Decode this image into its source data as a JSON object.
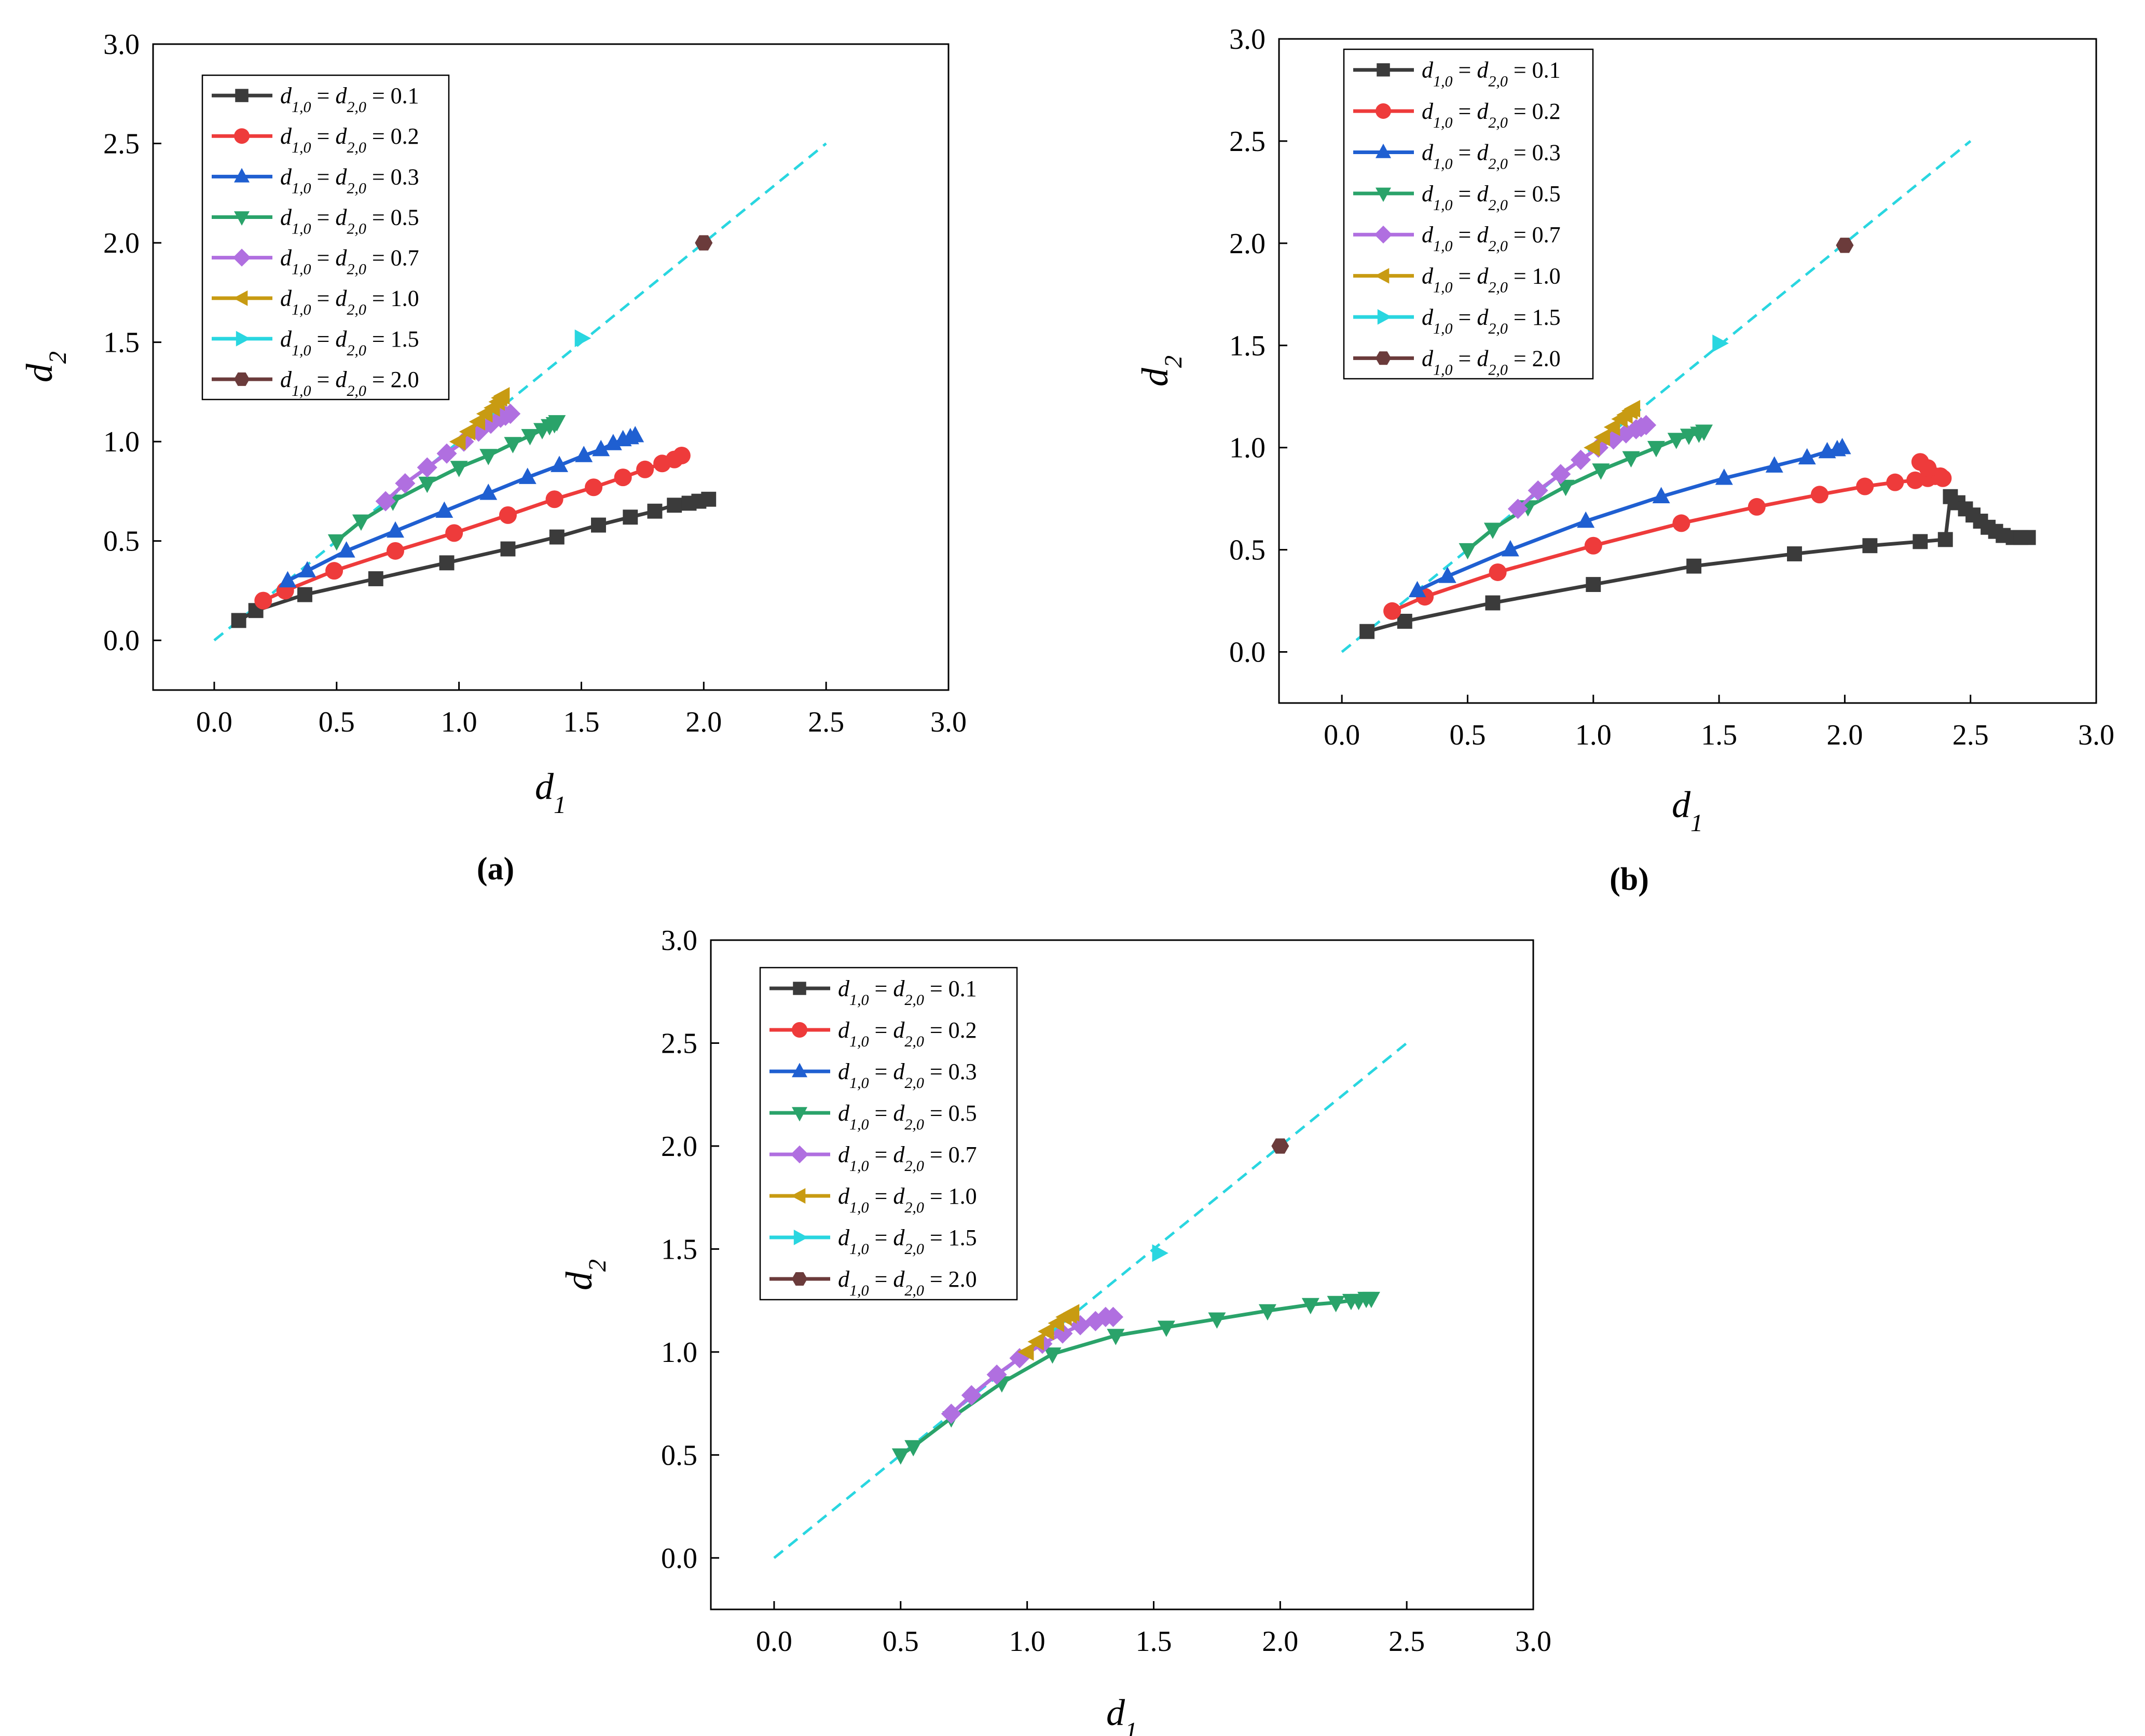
{
  "colors": {
    "d01": "#3b3b3b",
    "d02": "#ee3b3b",
    "d03": "#1f5fd1",
    "d05": "#2aa36a",
    "d07": "#b06fe0",
    "d10": "#c89b12",
    "d15": "#29d6e0",
    "d20": "#6b3b3b",
    "diag": "#29d6e0"
  },
  "series_styles": [
    {
      "key": "0.1",
      "marker": "square",
      "color": "#3b3b3b"
    },
    {
      "key": "0.2",
      "marker": "circle",
      "color": "#ee3b3b"
    },
    {
      "key": "0.3",
      "marker": "triangle-up",
      "color": "#1f5fd1"
    },
    {
      "key": "0.5",
      "marker": "triangle-down",
      "color": "#2aa36a"
    },
    {
      "key": "0.7",
      "marker": "diamond",
      "color": "#b06fe0"
    },
    {
      "key": "1.0",
      "marker": "triangle-left",
      "color": "#c89b12"
    },
    {
      "key": "1.5",
      "marker": "triangle-right",
      "color": "#29d6e0"
    },
    {
      "key": "2.0",
      "marker": "hexagon",
      "color": "#6b3b3b"
    }
  ],
  "chart_data": [
    {
      "type": "line",
      "panel_label": "(a)",
      "xlabel": "d1",
      "ylabel": "d2",
      "xlim": [
        -0.25,
        3.0
      ],
      "ylim": [
        -0.25,
        3.0
      ],
      "xticks": [
        "0.0",
        "0.5",
        "1.0",
        "1.5",
        "2.0",
        "2.5",
        "3.0"
      ],
      "yticks": [
        "0.0",
        "0.5",
        "1.0",
        "1.5",
        "2.0",
        "2.5",
        "3.0"
      ],
      "legend_position": "top-left",
      "legend_entries": [
        "0.1",
        "0.2",
        "0.3",
        "0.5",
        "0.7",
        "1.0",
        "1.5",
        "2.0"
      ],
      "reference_line": {
        "x": [
          0,
          2.5
        ],
        "y": [
          0,
          2.5
        ]
      },
      "series": [
        {
          "name": "0.1",
          "x": [
            0.1,
            0.17,
            0.37,
            0.66,
            0.95,
            1.2,
            1.4,
            1.57,
            1.7,
            1.8,
            1.88,
            1.94,
            1.98,
            2.02
          ],
          "y": [
            0.1,
            0.15,
            0.23,
            0.31,
            0.39,
            0.46,
            0.52,
            0.58,
            0.62,
            0.65,
            0.68,
            0.69,
            0.7,
            0.71
          ]
        },
        {
          "name": "0.2",
          "x": [
            0.2,
            0.29,
            0.49,
            0.74,
            0.98,
            1.2,
            1.39,
            1.55,
            1.67,
            1.76,
            1.83,
            1.88,
            1.91
          ],
          "y": [
            0.2,
            0.25,
            0.35,
            0.45,
            0.54,
            0.63,
            0.71,
            0.77,
            0.82,
            0.86,
            0.89,
            0.91,
            0.93
          ]
        },
        {
          "name": "0.3",
          "x": [
            0.3,
            0.38,
            0.54,
            0.74,
            0.94,
            1.12,
            1.28,
            1.41,
            1.51,
            1.58,
            1.63,
            1.67,
            1.7,
            1.72
          ],
          "y": [
            0.3,
            0.35,
            0.45,
            0.55,
            0.65,
            0.74,
            0.82,
            0.88,
            0.93,
            0.96,
            0.99,
            1.01,
            1.02,
            1.03
          ]
        },
        {
          "name": "0.5",
          "x": [
            0.5,
            0.6,
            0.73,
            0.87,
            1.0,
            1.12,
            1.22,
            1.29,
            1.34,
            1.37,
            1.39,
            1.4
          ],
          "y": [
            0.5,
            0.6,
            0.7,
            0.79,
            0.87,
            0.93,
            0.99,
            1.03,
            1.06,
            1.08,
            1.09,
            1.1
          ]
        },
        {
          "name": "0.7",
          "x": [
            0.7,
            0.78,
            0.87,
            0.95,
            1.02,
            1.08,
            1.13,
            1.17,
            1.19,
            1.21
          ],
          "y": [
            0.7,
            0.79,
            0.87,
            0.94,
            1.0,
            1.05,
            1.09,
            1.12,
            1.13,
            1.14
          ]
        },
        {
          "name": "1.0",
          "x": [
            1.0,
            1.04,
            1.08,
            1.11,
            1.14,
            1.16,
            1.17,
            1.18
          ],
          "y": [
            1.0,
            1.05,
            1.1,
            1.14,
            1.17,
            1.2,
            1.22,
            1.23
          ]
        },
        {
          "name": "1.5",
          "x": [
            1.5
          ],
          "y": [
            1.52
          ]
        },
        {
          "name": "2.0",
          "x": [
            2.0
          ],
          "y": [
            2.0
          ]
        }
      ]
    },
    {
      "type": "line",
      "panel_label": "(b)",
      "xlabel": "d1",
      "ylabel": "d2",
      "xlim": [
        -0.25,
        3.0
      ],
      "ylim": [
        -0.25,
        3.0
      ],
      "xticks": [
        "0.0",
        "0.5",
        "1.0",
        "1.5",
        "2.0",
        "2.5",
        "3.0"
      ],
      "yticks": [
        "0.0",
        "0.5",
        "1.0",
        "1.5",
        "2.0",
        "2.5",
        "3.0"
      ],
      "legend_position": "top-left",
      "legend_entries": [
        "0.1",
        "0.2",
        "0.3",
        "0.5",
        "0.7",
        "1.0",
        "1.5",
        "2.0"
      ],
      "reference_line": {
        "x": [
          0,
          2.5
        ],
        "y": [
          0,
          2.5
        ]
      },
      "series": [
        {
          "name": "0.1",
          "x": [
            0.1,
            0.25,
            0.6,
            1.0,
            1.4,
            1.8,
            2.1,
            2.3,
            2.4,
            2.42,
            2.45,
            2.48,
            2.51,
            2.54,
            2.57,
            2.6,
            2.63,
            2.67,
            2.7,
            2.73
          ],
          "y": [
            0.1,
            0.15,
            0.24,
            0.33,
            0.42,
            0.48,
            0.52,
            0.54,
            0.55,
            0.76,
            0.73,
            0.7,
            0.67,
            0.64,
            0.61,
            0.59,
            0.57,
            0.56,
            0.56,
            0.56
          ]
        },
        {
          "name": "0.2",
          "x": [
            0.2,
            0.33,
            0.62,
            1.0,
            1.35,
            1.65,
            1.9,
            2.08,
            2.2,
            2.28,
            2.33,
            2.36,
            2.38,
            2.39,
            2.3,
            2.33
          ],
          "y": [
            0.2,
            0.27,
            0.39,
            0.52,
            0.63,
            0.71,
            0.77,
            0.81,
            0.83,
            0.84,
            0.85,
            0.86,
            0.86,
            0.85,
            0.93,
            0.9
          ]
        },
        {
          "name": "0.3",
          "x": [
            0.3,
            0.42,
            0.67,
            0.97,
            1.27,
            1.52,
            1.72,
            1.85,
            1.93,
            1.97,
            1.99
          ],
          "y": [
            0.3,
            0.37,
            0.5,
            0.64,
            0.76,
            0.85,
            0.91,
            0.95,
            0.98,
            0.99,
            1.0
          ]
        },
        {
          "name": "0.5",
          "x": [
            0.5,
            0.6,
            0.74,
            0.89,
            1.03,
            1.15,
            1.25,
            1.33,
            1.38,
            1.42,
            1.44
          ],
          "y": [
            0.5,
            0.6,
            0.71,
            0.81,
            0.89,
            0.95,
            1.0,
            1.04,
            1.06,
            1.07,
            1.08
          ]
        },
        {
          "name": "0.7",
          "x": [
            0.7,
            0.78,
            0.87,
            0.95,
            1.02,
            1.08,
            1.13,
            1.17,
            1.19,
            1.21
          ],
          "y": [
            0.7,
            0.79,
            0.87,
            0.94,
            1.0,
            1.04,
            1.07,
            1.09,
            1.1,
            1.11
          ]
        },
        {
          "name": "1.0",
          "x": [
            1.0,
            1.04,
            1.08,
            1.11,
            1.13,
            1.15,
            1.16
          ],
          "y": [
            1.0,
            1.05,
            1.1,
            1.14,
            1.16,
            1.18,
            1.19
          ]
        },
        {
          "name": "1.5",
          "x": [
            1.5
          ],
          "y": [
            1.51
          ]
        },
        {
          "name": "2.0",
          "x": [
            2.0
          ],
          "y": [
            1.99
          ]
        }
      ]
    },
    {
      "type": "line",
      "panel_label": "",
      "xlabel": "d1",
      "ylabel": "d2",
      "xlim": [
        -0.25,
        3.0
      ],
      "ylim": [
        -0.25,
        3.0
      ],
      "xticks": [
        "0.0",
        "0.5",
        "1.0",
        "1.5",
        "2.0",
        "2.5",
        "3.0"
      ],
      "yticks": [
        "0.0",
        "0.5",
        "1.0",
        "1.5",
        "2.0",
        "2.5",
        "3.0"
      ],
      "legend_position": "top-left",
      "legend_entries": [
        "0.1",
        "0.2",
        "0.3",
        "0.5",
        "0.7",
        "1.0",
        "1.5",
        "2.0"
      ],
      "reference_line": {
        "x": [
          0,
          2.5
        ],
        "y": [
          0,
          2.5
        ]
      },
      "series": [
        {
          "name": "0.5",
          "x": [
            0.5,
            0.55,
            0.7,
            0.9,
            1.1,
            1.35,
            1.55,
            1.75,
            1.95,
            2.12,
            2.22,
            2.28,
            2.31,
            2.34,
            2.36
          ],
          "y": [
            0.5,
            0.54,
            0.68,
            0.85,
            0.99,
            1.08,
            1.12,
            1.16,
            1.2,
            1.23,
            1.24,
            1.25,
            1.25,
            1.26,
            1.26
          ]
        },
        {
          "name": "0.7",
          "x": [
            0.7,
            0.78,
            0.88,
            0.97,
            1.06,
            1.14,
            1.21,
            1.27,
            1.31,
            1.34
          ],
          "y": [
            0.7,
            0.79,
            0.89,
            0.97,
            1.04,
            1.09,
            1.13,
            1.15,
            1.17,
            1.17
          ]
        },
        {
          "name": "1.0",
          "x": [
            1.0,
            1.04,
            1.08,
            1.12,
            1.15,
            1.17,
            1.18
          ],
          "y": [
            1.0,
            1.05,
            1.1,
            1.14,
            1.17,
            1.18,
            1.19
          ]
        },
        {
          "name": "1.5",
          "x": [
            1.52
          ],
          "y": [
            1.48
          ]
        },
        {
          "name": "2.0",
          "x": [
            2.0
          ],
          "y": [
            2.0
          ]
        }
      ]
    }
  ]
}
